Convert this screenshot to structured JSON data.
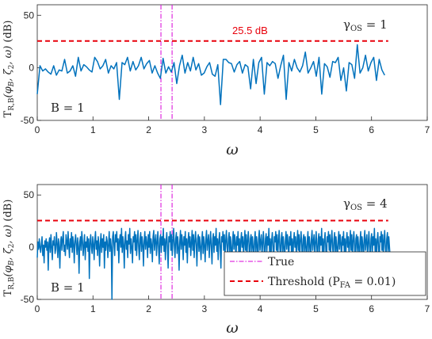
{
  "chart_data": [
    {
      "type": "line",
      "ylabel": "T_{R,B}(φ_B, ζ_2, ω) (dB)",
      "xlabel": "ω",
      "xlim": [
        0,
        7
      ],
      "ylim": [
        -50,
        60
      ],
      "xticks": [
        "0",
        "1",
        "2",
        "3",
        "4",
        "5",
        "6",
        "7"
      ],
      "yticks": [
        "-50",
        "0",
        "50"
      ],
      "annotations": [
        "B = 1",
        "γ_OS = 1",
        "25.5 dB"
      ],
      "threshold_label": "25.5 dB",
      "gamma_label": "γ",
      "gamma_sub": "OS",
      "gamma_value": " = 1",
      "b_label": "B = 1",
      "series": [
        {
          "color": "#0072BD",
          "x_start": 0,
          "x_step": 0.0491,
          "values": [
            -25,
            2,
            -3,
            -1,
            -4,
            -6,
            2,
            -7,
            -2,
            -3,
            8,
            -5,
            -3,
            2,
            -8,
            10,
            -3,
            3,
            1,
            -2,
            -4,
            10,
            6,
            -1,
            2,
            8,
            -5,
            2,
            -1,
            5,
            -30,
            5,
            3,
            10,
            -3,
            6,
            -2,
            2,
            10,
            -1,
            4,
            7,
            -5,
            2,
            -5,
            -10,
            9,
            -5,
            1,
            -4,
            5,
            -15,
            2,
            12,
            -5,
            5,
            -3,
            10,
            -2,
            4,
            -7,
            -5,
            1,
            5,
            -6,
            -8,
            3,
            -35,
            8,
            8,
            5,
            4,
            -4,
            3,
            6,
            -5,
            3,
            1,
            -20,
            8,
            -15,
            5,
            10,
            -25,
            5,
            2,
            6,
            4,
            -10,
            2,
            12,
            -30,
            5,
            -3,
            8,
            0,
            -4,
            2,
            15,
            -5,
            0,
            6,
            -8,
            10,
            -25,
            4,
            1,
            -9,
            6,
            5,
            10,
            -12,
            0,
            -22,
            5,
            3,
            -10,
            22,
            -5,
            0,
            12,
            -3,
            5,
            10,
            -12,
            8,
            -2,
            -7
          ]
        }
      ],
      "true_lines": [
        2.22,
        2.42
      ],
      "threshold": 25.5
    },
    {
      "type": "line",
      "ylabel": "T_{R,B}(φ_B, ζ_2, ω) (dB)",
      "xlabel": "ω",
      "xlim": [
        0,
        7
      ],
      "ylim": [
        -50,
        60
      ],
      "xticks": [
        "0",
        "1",
        "2",
        "3",
        "4",
        "5",
        "6",
        "7"
      ],
      "yticks": [
        "-50",
        "0",
        "50"
      ],
      "gamma_label": "γ",
      "gamma_sub": "OS",
      "gamma_value": " = 4",
      "b_label": "B = 1",
      "legend": {
        "placement": "bottom-right",
        "true_label": "True",
        "threshold_prefix": "Threshold (P",
        "threshold_sub": "FA",
        "threshold_suffix": " = 0.01)"
      },
      "series": [
        {
          "color": "#0072BD",
          "x_start": 0,
          "x_step": 0.0123,
          "values": [
            -10,
            5,
            -2,
            8,
            0,
            -5,
            3,
            10,
            -8,
            2,
            -15,
            6,
            0,
            8,
            -3,
            5,
            -22,
            3,
            9,
            -5,
            12,
            0,
            -12,
            6,
            2,
            10,
            -6,
            -2,
            14,
            3,
            -10,
            8,
            0,
            -20,
            5,
            10,
            -3,
            8,
            15,
            -4,
            2,
            -8,
            12,
            5,
            -2,
            15,
            2,
            -10,
            8,
            0,
            14,
            -5,
            10,
            3,
            -15,
            6,
            12,
            2,
            -7,
            9,
            0,
            -25,
            5,
            10,
            -3,
            15,
            6,
            -8,
            2,
            12,
            -12,
            5,
            0,
            10,
            -4,
            8,
            -30,
            4,
            12,
            0,
            -6,
            10,
            3,
            -12,
            7,
            15,
            -2,
            6,
            -8,
            10,
            2,
            -18,
            4,
            13,
            -5,
            8,
            0,
            12,
            -20,
            5,
            -3,
            10,
            6,
            -10,
            2,
            15,
            -4,
            8,
            0,
            -50,
            10,
            15,
            2,
            -8,
            12,
            5,
            15,
            -3,
            8,
            -15,
            6,
            12,
            0,
            18,
            -5,
            10,
            2,
            -20,
            8,
            15,
            -2,
            6,
            -10,
            12,
            3,
            18,
            -6,
            8,
            0,
            -15,
            10,
            5,
            15,
            -3,
            12,
            -8,
            6,
            16,
            0,
            -12,
            8,
            14,
            -4,
            10,
            2,
            -18,
            6,
            15,
            -2,
            10,
            4,
            -10,
            12,
            0,
            15,
            -6,
            8,
            2,
            -14,
            10,
            16,
            -3,
            6,
            12,
            -8,
            4,
            15,
            0,
            -16,
            8,
            12,
            -5,
            10,
            2,
            18,
            -4,
            8,
            -12,
            6,
            14,
            0,
            -20,
            10,
            5,
            15,
            -3,
            12,
            -8,
            6,
            18,
            2,
            -10,
            8,
            14,
            -6,
            10,
            0,
            -22,
            6,
            16,
            -2,
            12,
            4,
            -12,
            10,
            2,
            15,
            -5,
            8,
            -15,
            6,
            14,
            0,
            10,
            -8,
            4,
            16,
            -3,
            12,
            -10,
            6,
            15,
            2,
            -18,
            8,
            12,
            -4,
            10,
            0,
            -12,
            6,
            15,
            -6,
            10,
            2,
            -14,
            8,
            16,
            -3,
            6,
            12,
            -10,
            4,
            15,
            0,
            -16,
            8,
            13,
            -5,
            10,
            2,
            18,
            -4,
            8,
            -12,
            6,
            14,
            0,
            -20,
            10,
            5,
            15,
            -3,
            12,
            -8,
            6,
            16,
            0,
            -10,
            8,
            14,
            -6,
            10,
            0,
            -22,
            6,
            15,
            -2,
            12,
            4,
            -12,
            10,
            2,
            15,
            -5,
            8,
            -15,
            6,
            14,
            0,
            10,
            -8,
            4,
            16,
            -3,
            12,
            -10,
            6,
            15,
            2,
            -18,
            8,
            12,
            -4,
            10,
            0,
            -12,
            6,
            15,
            -6,
            10,
            2,
            -14,
            8,
            16,
            -3,
            6,
            12,
            -10,
            4,
            15,
            0,
            -16,
            8,
            13,
            -5,
            10,
            2,
            18,
            -4,
            8,
            -12,
            6,
            14,
            0,
            -20,
            10,
            5,
            15,
            -3,
            12,
            -8,
            6,
            16,
            0,
            -10,
            8,
            14,
            -6,
            10,
            0,
            -15,
            6,
            15,
            -2,
            12,
            4,
            -12,
            10,
            2,
            15,
            -5,
            8,
            -15,
            6,
            14,
            0,
            10,
            -8,
            4,
            16,
            -3,
            12,
            -10,
            6,
            15,
            2,
            -18,
            8,
            12,
            -4,
            10,
            0,
            -12,
            6,
            15,
            -6,
            10,
            2,
            -14,
            8,
            16,
            -3,
            6,
            12,
            -10,
            4,
            15,
            0,
            -16,
            8,
            13,
            -5,
            10,
            2,
            18,
            -4,
            8,
            -12,
            6,
            14,
            0,
            -20,
            10,
            5,
            15,
            -3,
            12,
            -8,
            6,
            16,
            0,
            -10,
            8,
            14,
            -6,
            10,
            0,
            -15,
            6,
            15,
            -2,
            12,
            4,
            -12,
            10,
            2,
            15,
            -5,
            8,
            -15,
            6,
            14,
            0,
            10,
            -8,
            4,
            16,
            -3,
            12,
            -10,
            6,
            15,
            2,
            -18,
            8,
            12,
            -4,
            10,
            0,
            -12,
            6,
            15,
            -6,
            10,
            2,
            -14,
            8,
            16,
            -3,
            6,
            12,
            -10,
            4,
            15,
            0,
            -16,
            8,
            13,
            -5,
            10,
            2,
            18,
            -4,
            8,
            -12,
            6,
            14,
            0,
            -20,
            10,
            5,
            15,
            -3,
            12,
            -8,
            6,
            16,
            0,
            -10,
            8,
            14,
            -6,
            10,
            0,
            -10
          ]
        }
      ],
      "true_lines": [
        2.22,
        2.42
      ],
      "threshold": 25.5
    }
  ]
}
